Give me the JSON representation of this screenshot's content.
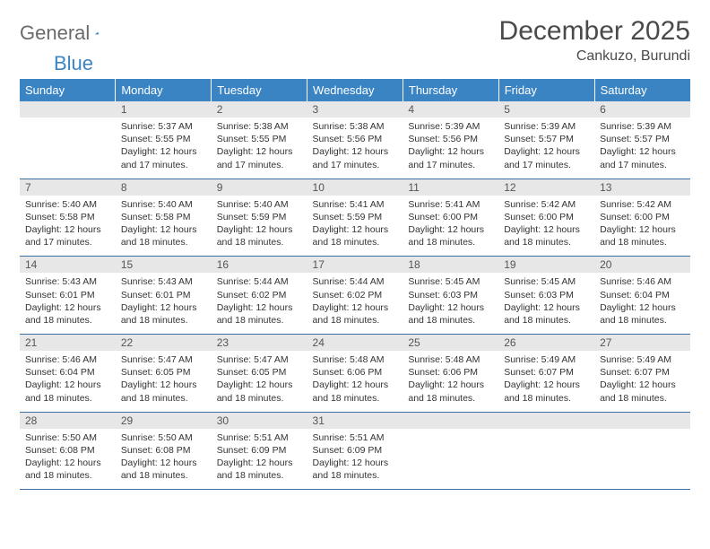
{
  "logo": {
    "text_gray": "General",
    "text_blue": "Blue",
    "tri_color": "#3b84c4"
  },
  "header": {
    "month_title": "December 2025",
    "location": "Cankuzo, Burundi"
  },
  "colors": {
    "header_bg": "#3b84c4",
    "header_fg": "#ffffff",
    "daynum_bg": "#e7e7e7",
    "row_divider": "#3b6fa0"
  },
  "day_headers": [
    "Sunday",
    "Monday",
    "Tuesday",
    "Wednesday",
    "Thursday",
    "Friday",
    "Saturday"
  ],
  "start_offset": 1,
  "days": [
    {
      "n": 1,
      "sunrise": "5:37 AM",
      "sunset": "5:55 PM",
      "daylight": "12 hours and 17 minutes."
    },
    {
      "n": 2,
      "sunrise": "5:38 AM",
      "sunset": "5:55 PM",
      "daylight": "12 hours and 17 minutes."
    },
    {
      "n": 3,
      "sunrise": "5:38 AM",
      "sunset": "5:56 PM",
      "daylight": "12 hours and 17 minutes."
    },
    {
      "n": 4,
      "sunrise": "5:39 AM",
      "sunset": "5:56 PM",
      "daylight": "12 hours and 17 minutes."
    },
    {
      "n": 5,
      "sunrise": "5:39 AM",
      "sunset": "5:57 PM",
      "daylight": "12 hours and 17 minutes."
    },
    {
      "n": 6,
      "sunrise": "5:39 AM",
      "sunset": "5:57 PM",
      "daylight": "12 hours and 17 minutes."
    },
    {
      "n": 7,
      "sunrise": "5:40 AM",
      "sunset": "5:58 PM",
      "daylight": "12 hours and 17 minutes."
    },
    {
      "n": 8,
      "sunrise": "5:40 AM",
      "sunset": "5:58 PM",
      "daylight": "12 hours and 18 minutes."
    },
    {
      "n": 9,
      "sunrise": "5:40 AM",
      "sunset": "5:59 PM",
      "daylight": "12 hours and 18 minutes."
    },
    {
      "n": 10,
      "sunrise": "5:41 AM",
      "sunset": "5:59 PM",
      "daylight": "12 hours and 18 minutes."
    },
    {
      "n": 11,
      "sunrise": "5:41 AM",
      "sunset": "6:00 PM",
      "daylight": "12 hours and 18 minutes."
    },
    {
      "n": 12,
      "sunrise": "5:42 AM",
      "sunset": "6:00 PM",
      "daylight": "12 hours and 18 minutes."
    },
    {
      "n": 13,
      "sunrise": "5:42 AM",
      "sunset": "6:00 PM",
      "daylight": "12 hours and 18 minutes."
    },
    {
      "n": 14,
      "sunrise": "5:43 AM",
      "sunset": "6:01 PM",
      "daylight": "12 hours and 18 minutes."
    },
    {
      "n": 15,
      "sunrise": "5:43 AM",
      "sunset": "6:01 PM",
      "daylight": "12 hours and 18 minutes."
    },
    {
      "n": 16,
      "sunrise": "5:44 AM",
      "sunset": "6:02 PM",
      "daylight": "12 hours and 18 minutes."
    },
    {
      "n": 17,
      "sunrise": "5:44 AM",
      "sunset": "6:02 PM",
      "daylight": "12 hours and 18 minutes."
    },
    {
      "n": 18,
      "sunrise": "5:45 AM",
      "sunset": "6:03 PM",
      "daylight": "12 hours and 18 minutes."
    },
    {
      "n": 19,
      "sunrise": "5:45 AM",
      "sunset": "6:03 PM",
      "daylight": "12 hours and 18 minutes."
    },
    {
      "n": 20,
      "sunrise": "5:46 AM",
      "sunset": "6:04 PM",
      "daylight": "12 hours and 18 minutes."
    },
    {
      "n": 21,
      "sunrise": "5:46 AM",
      "sunset": "6:04 PM",
      "daylight": "12 hours and 18 minutes."
    },
    {
      "n": 22,
      "sunrise": "5:47 AM",
      "sunset": "6:05 PM",
      "daylight": "12 hours and 18 minutes."
    },
    {
      "n": 23,
      "sunrise": "5:47 AM",
      "sunset": "6:05 PM",
      "daylight": "12 hours and 18 minutes."
    },
    {
      "n": 24,
      "sunrise": "5:48 AM",
      "sunset": "6:06 PM",
      "daylight": "12 hours and 18 minutes."
    },
    {
      "n": 25,
      "sunrise": "5:48 AM",
      "sunset": "6:06 PM",
      "daylight": "12 hours and 18 minutes."
    },
    {
      "n": 26,
      "sunrise": "5:49 AM",
      "sunset": "6:07 PM",
      "daylight": "12 hours and 18 minutes."
    },
    {
      "n": 27,
      "sunrise": "5:49 AM",
      "sunset": "6:07 PM",
      "daylight": "12 hours and 18 minutes."
    },
    {
      "n": 28,
      "sunrise": "5:50 AM",
      "sunset": "6:08 PM",
      "daylight": "12 hours and 18 minutes."
    },
    {
      "n": 29,
      "sunrise": "5:50 AM",
      "sunset": "6:08 PM",
      "daylight": "12 hours and 18 minutes."
    },
    {
      "n": 30,
      "sunrise": "5:51 AM",
      "sunset": "6:09 PM",
      "daylight": "12 hours and 18 minutes."
    },
    {
      "n": 31,
      "sunrise": "5:51 AM",
      "sunset": "6:09 PM",
      "daylight": "12 hours and 18 minutes."
    }
  ],
  "labels": {
    "sunrise": "Sunrise:",
    "sunset": "Sunset:",
    "daylight": "Daylight:"
  }
}
